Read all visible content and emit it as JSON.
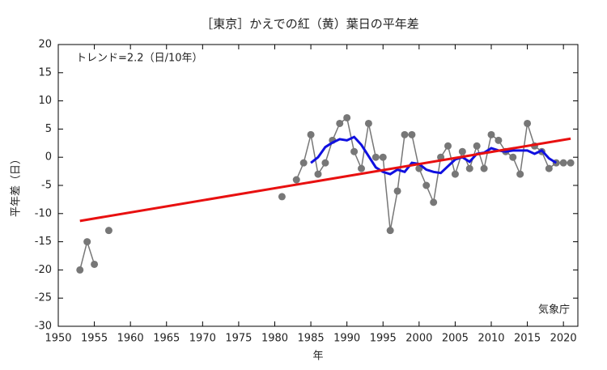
{
  "chart_data": {
    "type": "line",
    "title": "［東京］かえでの紅（黄）葉日の平年差",
    "annotation": "トレンド=2.2（日/10年）",
    "source": "気象庁",
    "x_label": "年",
    "y_label": "平年差（日）",
    "xlim": [
      1950,
      2022
    ],
    "xticks": [
      1950,
      1955,
      1960,
      1965,
      1970,
      1975,
      1980,
      1985,
      1990,
      1995,
      2000,
      2005,
      2010,
      2015,
      2020
    ],
    "ylim": [
      -30,
      20
    ],
    "yticks": [
      -30,
      -25,
      -20,
      -15,
      -10,
      -5,
      0,
      5,
      10,
      15,
      20
    ],
    "series": [
      {
        "color": "#777777",
        "markers": true,
        "x": [
          1953,
          1954,
          1955,
          1956,
          1957,
          1958,
          1959,
          1960,
          1961,
          1962,
          1963,
          1964,
          1965,
          1966,
          1967,
          1968,
          1969,
          1970,
          1971,
          1972,
          1973,
          1974,
          1975,
          1976,
          1977,
          1978,
          1979,
          1980,
          1981,
          1982,
          1983,
          1984,
          1985,
          1986,
          1987,
          1988,
          1989,
          1990,
          1991,
          1992,
          1993,
          1994,
          1995,
          1996,
          1997,
          1998,
          1999,
          2000,
          2001,
          2002,
          2003,
          2004,
          2005,
          2006,
          2007,
          2008,
          2009,
          2010,
          2011,
          2012,
          2013,
          2014,
          2015,
          2016,
          2017,
          2018,
          2019,
          2020,
          2021
        ],
        "values": [
          -20,
          -15,
          -19,
          null,
          -13,
          null,
          null,
          null,
          null,
          null,
          null,
          null,
          null,
          null,
          null,
          null,
          null,
          null,
          null,
          null,
          null,
          null,
          null,
          null,
          null,
          null,
          null,
          null,
          -7,
          null,
          -4,
          -1,
          4,
          -3,
          -1,
          3,
          6,
          7,
          1,
          -2,
          6,
          0,
          0,
          -13,
          -6,
          4,
          4,
          -2,
          -5,
          -8,
          0,
          2,
          -3,
          1,
          -2,
          2,
          -2,
          4,
          3,
          1,
          0,
          -3,
          6,
          2,
          1,
          -2,
          -1,
          -1,
          -1
        ]
      },
      {
        "color": "#1010e0",
        "markers": false,
        "x": [
          1985,
          1986,
          1987,
          1988,
          1989,
          1990,
          1991,
          1992,
          1993,
          1994,
          1995,
          1996,
          1997,
          1998,
          1999,
          2000,
          2001,
          2002,
          2003,
          2004,
          2005,
          2006,
          2007,
          2008,
          2009,
          2010,
          2011,
          2012,
          2013,
          2014,
          2015,
          2016,
          2017,
          2018,
          2019
        ],
        "values": [
          -1,
          0,
          1.8,
          2.6,
          3.2,
          3,
          3.6,
          2.2,
          0.2,
          -1.8,
          -2.6,
          -3,
          -2.2,
          -2.6,
          -1,
          -1.2,
          -2.2,
          -2.6,
          -2.8,
          -1.6,
          -0.4,
          0,
          -0.8,
          0.6,
          0.8,
          1.6,
          1.2,
          1,
          1.2,
          1.2,
          1.2,
          0.6,
          1.2,
          -0.2,
          -1
        ]
      },
      {
        "color": "#e81010",
        "markers": false,
        "x": [
          1953,
          2021
        ],
        "values": [
          -11.3,
          3.3
        ]
      }
    ]
  }
}
